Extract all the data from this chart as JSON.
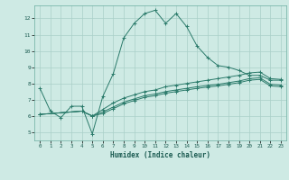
{
  "xlabel": "Humidex (Indice chaleur)",
  "line_color": "#2a7a6a",
  "bg_color": "#ceeae4",
  "grid_color": "#aacfc8",
  "xlim": [
    -0.5,
    23.5
  ],
  "ylim": [
    4.5,
    12.8
  ],
  "series1_x": [
    0,
    1,
    2,
    3,
    4,
    5,
    6,
    7,
    8,
    9,
    10,
    11,
    12,
    13,
    14,
    15,
    16,
    17,
    18,
    19,
    20,
    21,
    22,
    23
  ],
  "series1_y": [
    7.7,
    6.3,
    5.9,
    6.6,
    6.6,
    4.9,
    7.2,
    8.6,
    10.8,
    11.7,
    12.3,
    12.5,
    11.7,
    12.3,
    11.5,
    10.3,
    9.6,
    9.1,
    9.0,
    8.8,
    8.5,
    8.5,
    8.2,
    8.2
  ],
  "series2_x": [
    0,
    4,
    5,
    6,
    7,
    8,
    9,
    10,
    11,
    12,
    13,
    14,
    15,
    16,
    17,
    18,
    19,
    20,
    21,
    22,
    23
  ],
  "series2_y": [
    6.1,
    6.3,
    6.0,
    6.4,
    6.8,
    7.1,
    7.3,
    7.5,
    7.6,
    7.8,
    7.9,
    8.0,
    8.1,
    8.2,
    8.3,
    8.4,
    8.5,
    8.65,
    8.7,
    8.3,
    8.25
  ],
  "series3_x": [
    0,
    4,
    5,
    6,
    7,
    8,
    9,
    10,
    11,
    12,
    13,
    14,
    15,
    16,
    17,
    18,
    19,
    20,
    21,
    22,
    23
  ],
  "series3_y": [
    6.1,
    6.3,
    6.0,
    6.25,
    6.55,
    6.85,
    7.05,
    7.25,
    7.35,
    7.5,
    7.6,
    7.7,
    7.8,
    7.88,
    7.95,
    8.05,
    8.15,
    8.3,
    8.35,
    7.95,
    7.9
  ],
  "series4_x": [
    0,
    4,
    5,
    6,
    7,
    8,
    9,
    10,
    11,
    12,
    13,
    14,
    15,
    16,
    17,
    18,
    19,
    20,
    21,
    22,
    23
  ],
  "series4_y": [
    6.1,
    6.3,
    6.0,
    6.15,
    6.45,
    6.75,
    6.95,
    7.15,
    7.25,
    7.4,
    7.5,
    7.6,
    7.7,
    7.78,
    7.85,
    7.95,
    8.05,
    8.2,
    8.25,
    7.85,
    7.8
  ],
  "yticks": [
    5,
    6,
    7,
    8,
    9,
    10,
    11,
    12
  ],
  "xticks": [
    0,
    1,
    2,
    3,
    4,
    5,
    6,
    7,
    8,
    9,
    10,
    11,
    12,
    13,
    14,
    15,
    16,
    17,
    18,
    19,
    20,
    21,
    22,
    23
  ]
}
